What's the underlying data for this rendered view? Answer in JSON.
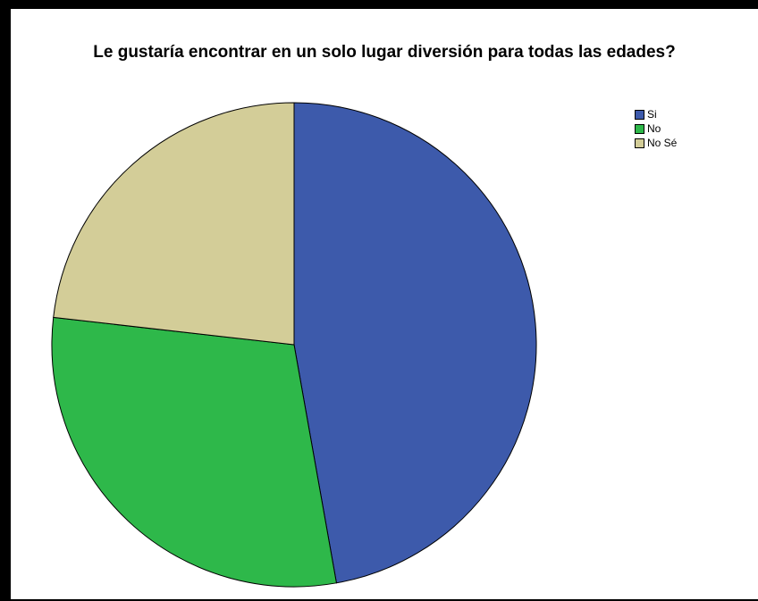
{
  "chart_data": {
    "type": "pie",
    "title": "Le gustaría encontrar en un solo lugar diversión para todas las edades?",
    "categories": [
      "Si",
      "No",
      "No Sé"
    ],
    "values": [
      47.2,
      29.6,
      23.2
    ],
    "colors": [
      "#3d5aab",
      "#2eb84a",
      "#d3cd98"
    ],
    "legend_position": "top-right"
  }
}
